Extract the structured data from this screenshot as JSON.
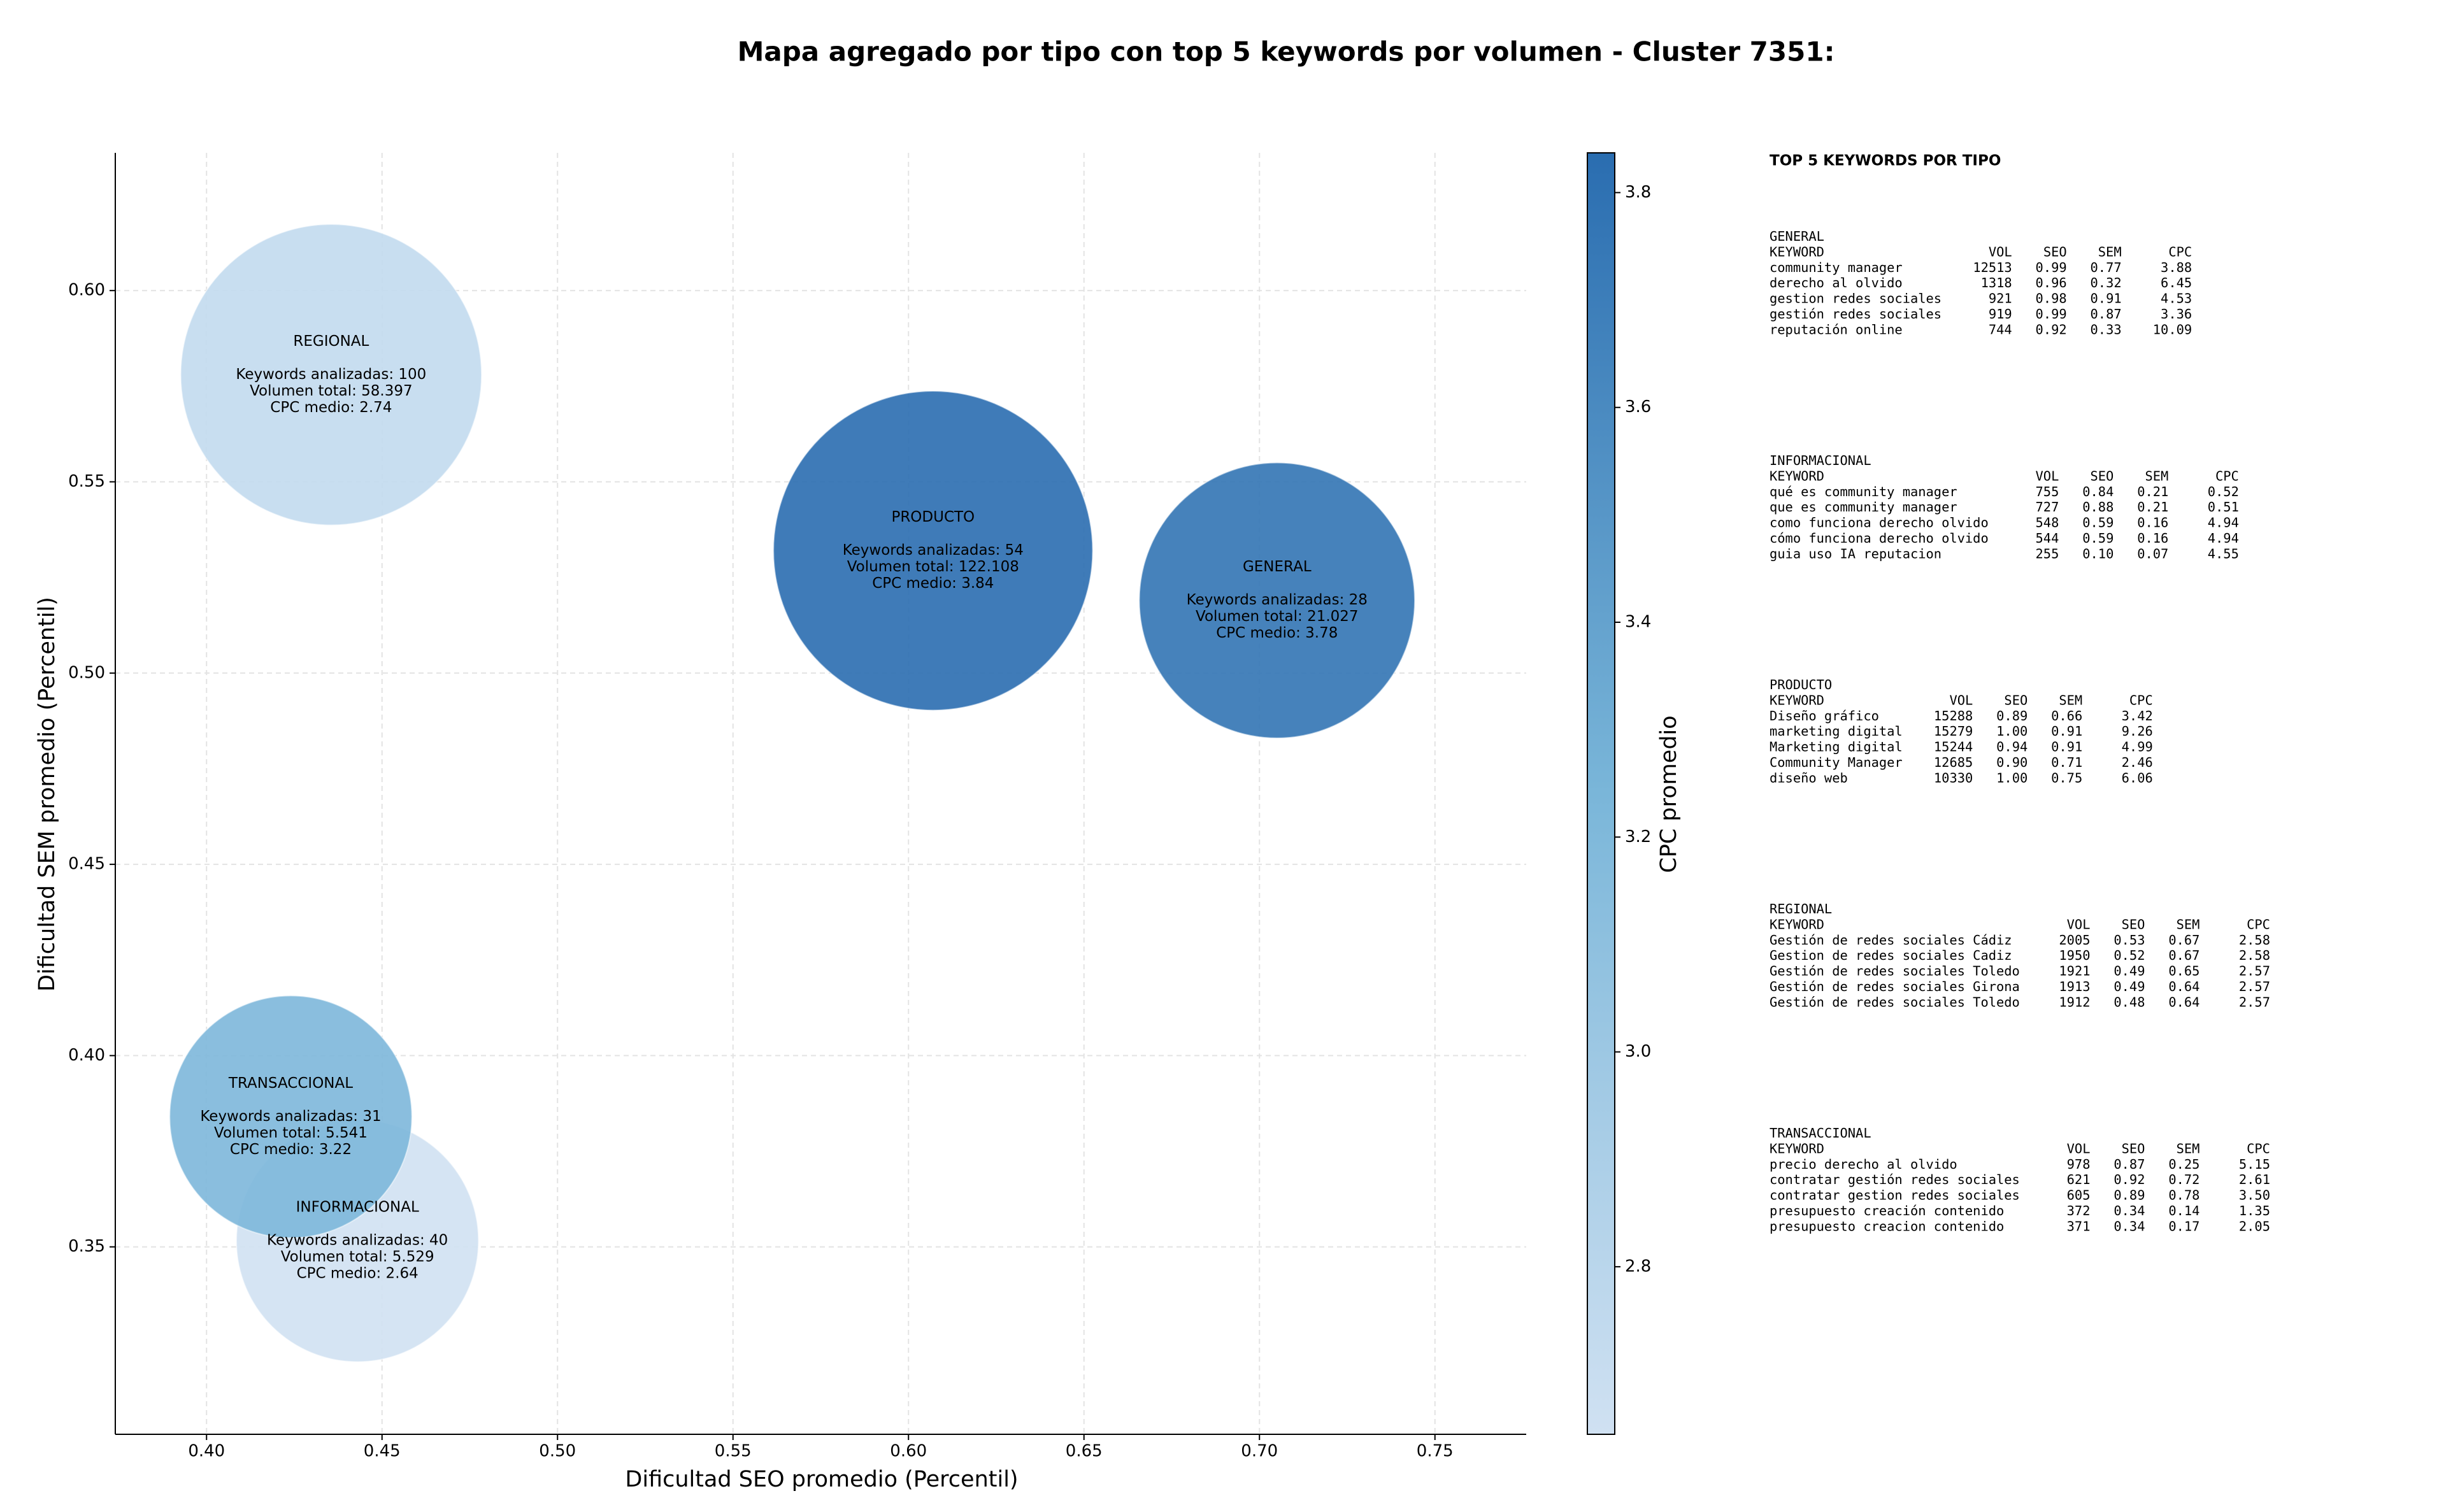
{
  "chart_data": {
    "type": "scatter",
    "title": "Mapa agregado por tipo con top 5 keywords por volumen - Cluster 7351:",
    "x_label": "Dificultad SEO promedio (Percentil)",
    "y_label": "Dificultad SEM promedio (Percentil)",
    "colorbar_label": "CPC promedio",
    "categories": [
      "GENERAL",
      "INFORMACIONAL",
      "PRODUCTO",
      "REGIONAL",
      "TRANSACCIONAL"
    ],
    "x": [
      0.705,
      0.443,
      0.607,
      0.4355,
      0.424
    ],
    "values": [
      0.519,
      0.3516,
      0.532,
      0.578,
      0.384
    ],
    "sizes": [
      21027,
      5529,
      122108,
      58397,
      5541
    ],
    "color_values": [
      3.78,
      2.64,
      3.84,
      2.74,
      3.22
    ],
    "point_labels": [
      [
        "Keywords analizadas: 28",
        "Volumen total: 21.027",
        "CPC medio: 3.78"
      ],
      [
        "Keywords analizadas: 40",
        "Volumen total: 5.529",
        "CPC medio: 2.64"
      ],
      [
        "Keywords analizadas: 54",
        "Volumen total: 122.108",
        "CPC medio: 3.84"
      ],
      [
        "Keywords analizadas: 100",
        "Volumen total: 58.397",
        "CPC medio: 2.74"
      ],
      [
        "Keywords analizadas: 31",
        "Volumen total: 5.541",
        "CPC medio: 3.22"
      ]
    ],
    "xlim": [
      0.374,
      0.776
    ],
    "ylim": [
      0.301,
      0.636
    ],
    "xticks": [
      {
        "value": 0.4,
        "label": "0.40"
      },
      0.45,
      {
        "value": 0.5,
        "label": "0.50"
      },
      0.55,
      {
        "value": 0.6,
        "label": "0.60"
      },
      0.65,
      {
        "value": 0.7,
        "label": "0.70"
      },
      0.75
    ],
    "yticks": [
      0.35,
      {
        "value": 0.4,
        "label": "0.40"
      },
      0.45,
      {
        "value": 0.5,
        "label": "0.50"
      },
      0.55,
      {
        "value": 0.6,
        "label": "0.60"
      }
    ],
    "clim": [
      2.644,
      3.837
    ],
    "cticks": [
      2.8,
      {
        "value": 3.0,
        "label": "3.0"
      },
      3.2,
      3.4,
      3.6,
      3.8
    ],
    "colormap": [
      "#d0e1f2",
      "#7ab6d9",
      "#2a6db0"
    ],
    "grid": true
  },
  "side_panel": {
    "title": "TOP 5 KEYWORDS POR TIPO",
    "header": [
      "KEYWORD",
      "VOL",
      "SEO",
      "SEM",
      "CPC"
    ],
    "sections": [
      {
        "name": "GENERAL",
        "rows": [
          [
            "community manager",
            "12513",
            "0.99",
            "0.77",
            "3.88"
          ],
          [
            "derecho al olvido",
            "1318",
            "0.96",
            "0.32",
            "6.45"
          ],
          [
            "gestion redes sociales",
            "921",
            "0.98",
            "0.91",
            "4.53"
          ],
          [
            "gestión redes sociales",
            "919",
            "0.99",
            "0.87",
            "3.36"
          ],
          [
            "reputación online",
            "744",
            "0.92",
            "0.33",
            "10.09"
          ]
        ]
      },
      {
        "name": "INFORMACIONAL",
        "rows": [
          [
            "qué es community manager",
            "755",
            "0.84",
            "0.21",
            "0.52"
          ],
          [
            "que es community manager",
            "727",
            "0.88",
            "0.21",
            "0.51"
          ],
          [
            "como funciona derecho olvido",
            "548",
            "0.59",
            "0.16",
            "4.94"
          ],
          [
            "cómo funciona derecho olvido",
            "544",
            "0.59",
            "0.16",
            "4.94"
          ],
          [
            "guia uso IA reputacion",
            "255",
            "0.10",
            "0.07",
            "4.55"
          ]
        ]
      },
      {
        "name": "PRODUCTO",
        "rows": [
          [
            "Diseño gráfico",
            "15288",
            "0.89",
            "0.66",
            "3.42"
          ],
          [
            "marketing digital",
            "15279",
            "1.00",
            "0.91",
            "9.26"
          ],
          [
            "Marketing digital",
            "15244",
            "0.94",
            "0.91",
            "4.99"
          ],
          [
            "Community Manager",
            "12685",
            "0.90",
            "0.71",
            "2.46"
          ],
          [
            "diseño web",
            "10330",
            "1.00",
            "0.75",
            "6.06"
          ]
        ]
      },
      {
        "name": "REGIONAL",
        "rows": [
          [
            "Gestión de redes sociales Cádiz",
            "2005",
            "0.53",
            "0.67",
            "2.58"
          ],
          [
            "Gestion de redes sociales Cadiz",
            "1950",
            "0.52",
            "0.67",
            "2.58"
          ],
          [
            "Gestión de redes sociales Toledo",
            "1921",
            "0.49",
            "0.65",
            "2.57"
          ],
          [
            "Gestión de redes sociales Girona",
            "1913",
            "0.49",
            "0.64",
            "2.57"
          ],
          [
            "Gestión de redes sociales Toledo",
            "1912",
            "0.48",
            "0.64",
            "2.57"
          ]
        ]
      },
      {
        "name": "TRANSACCIONAL",
        "rows": [
          [
            "precio derecho al olvido",
            "978",
            "0.87",
            "0.25",
            "5.15"
          ],
          [
            "contratar gestión redes sociales",
            "621",
            "0.92",
            "0.72",
            "2.61"
          ],
          [
            "contratar gestion redes sociales",
            "605",
            "0.89",
            "0.78",
            "3.50"
          ],
          [
            "presupuesto creación contenido",
            "372",
            "0.34",
            "0.14",
            "1.35"
          ],
          [
            "presupuesto creacion contenido",
            "371",
            "0.34",
            "0.17",
            "2.05"
          ]
        ]
      }
    ]
  }
}
